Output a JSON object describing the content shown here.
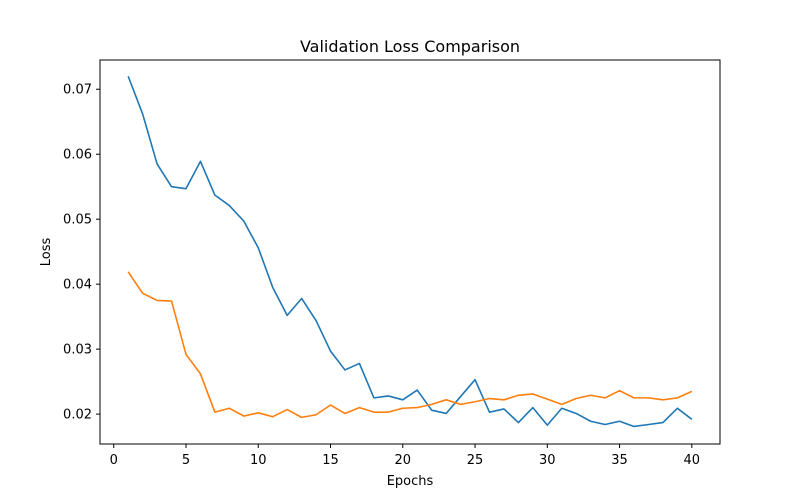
{
  "chart_data": {
    "type": "line",
    "title": "Validation Loss Comparison",
    "xlabel": "Epochs",
    "ylabel": "Loss",
    "xlim": [
      -0.95,
      41.95
    ],
    "ylim": [
      0.0154,
      0.0745
    ],
    "xticks": [
      0,
      5,
      10,
      15,
      20,
      25,
      30,
      35,
      40
    ],
    "yticks": [
      0.02,
      0.03,
      0.04,
      0.05,
      0.06,
      0.07
    ],
    "ytick_labels": [
      "0.02",
      "0.03",
      "0.04",
      "0.05",
      "0.06",
      "0.07"
    ],
    "grid": false,
    "x": [
      1,
      2,
      3,
      4,
      5,
      6,
      7,
      8,
      9,
      10,
      11,
      12,
      13,
      14,
      15,
      16,
      17,
      18,
      19,
      20,
      21,
      22,
      23,
      24,
      25,
      26,
      27,
      28,
      29,
      30,
      31,
      32,
      33,
      34,
      35,
      36,
      37,
      38,
      39,
      40
    ],
    "series": [
      {
        "color": "#1f77b4",
        "values": [
          0.072,
          0.0662,
          0.0585,
          0.055,
          0.0547,
          0.0589,
          0.0537,
          0.0521,
          0.0497,
          0.0456,
          0.0395,
          0.0352,
          0.0378,
          0.0344,
          0.0297,
          0.0268,
          0.0278,
          0.0225,
          0.0228,
          0.0222,
          0.0237,
          0.0206,
          0.0201,
          0.0227,
          0.0253,
          0.0203,
          0.0208,
          0.0187,
          0.021,
          0.0183,
          0.0209,
          0.0201,
          0.0189,
          0.0184,
          0.0189,
          0.0181,
          0.0184,
          0.0187,
          0.0209,
          0.0192
        ]
      },
      {
        "color": "#ff7f0e",
        "values": [
          0.0419,
          0.0386,
          0.0375,
          0.0374,
          0.0292,
          0.0262,
          0.0203,
          0.0209,
          0.0197,
          0.0202,
          0.0196,
          0.0207,
          0.0195,
          0.0199,
          0.0214,
          0.0201,
          0.021,
          0.0203,
          0.0203,
          0.0209,
          0.021,
          0.0215,
          0.0222,
          0.0215,
          0.0219,
          0.0224,
          0.0222,
          0.0229,
          0.0231,
          0.0223,
          0.0215,
          0.0224,
          0.0229,
          0.0225,
          0.0236,
          0.0225,
          0.0225,
          0.0222,
          0.0225,
          0.0235
        ]
      }
    ]
  }
}
